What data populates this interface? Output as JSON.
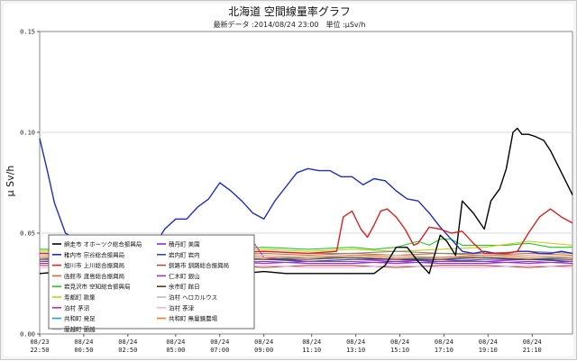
{
  "chart_data": {
    "type": "line",
    "title": "北海道 空間線量率グラフ",
    "subtitle": "最新データ :2014/08/24 23:00　単位 :μSv/h",
    "ylabel": "μ Sv/h",
    "xlabel": "",
    "ylim": [
      0,
      0.15
    ],
    "xlim": [
      22.83,
      47
    ],
    "y_ticks": [
      0.0,
      0.05,
      0.1,
      0.15
    ],
    "y_tick_labels": [
      "0.00",
      "0.05",
      "0.10",
      "0.15"
    ],
    "grid": "horizontal",
    "x_ticks": [
      {
        "x": 22.83,
        "date": "08/23",
        "time": "22:50"
      },
      {
        "x": 24.83,
        "date": "08/24",
        "time": "00:50"
      },
      {
        "x": 26.83,
        "date": "08/24",
        "time": "02:50"
      },
      {
        "x": 29.0,
        "date": "08/24",
        "time": "05:00"
      },
      {
        "x": 31.0,
        "date": "08/24",
        "time": "07:00"
      },
      {
        "x": 33.0,
        "date": "08/24",
        "time": "09:00"
      },
      {
        "x": 35.17,
        "date": "08/24",
        "time": "11:10"
      },
      {
        "x": 37.17,
        "date": "08/24",
        "time": "13:10"
      },
      {
        "x": 39.17,
        "date": "08/24",
        "time": "15:10"
      },
      {
        "x": 41.17,
        "date": "08/24",
        "time": "17:10"
      },
      {
        "x": 43.17,
        "date": "08/24",
        "time": "19:10"
      },
      {
        "x": 45.17,
        "date": "08/24",
        "time": "21:10"
      }
    ],
    "legend_placement": "lower-left",
    "series": [
      {
        "name": "網走市 オホーツク総合振興局",
        "color": "#000000",
        "x": [
          22.83,
          24,
          25,
          26,
          27,
          28,
          29,
          30,
          31,
          32,
          33,
          34,
          35,
          36,
          37,
          38,
          38.5,
          39,
          39.5,
          40,
          40.5,
          41,
          41.3,
          41.7,
          42,
          42.5,
          43,
          43.3,
          43.7,
          44,
          44.3,
          44.5,
          44.7,
          45,
          45.3,
          45.7,
          46,
          46.5,
          47
        ],
        "values": [
          0.03,
          0.031,
          0.031,
          0.031,
          0.03,
          0.031,
          0.03,
          0.031,
          0.031,
          0.03,
          0.031,
          0.03,
          0.03,
          0.03,
          0.03,
          0.03,
          0.034,
          0.043,
          0.043,
          0.036,
          0.03,
          0.049,
          0.046,
          0.039,
          0.066,
          0.06,
          0.052,
          0.066,
          0.072,
          0.082,
          0.1,
          0.102,
          0.099,
          0.099,
          0.098,
          0.096,
          0.091,
          0.08,
          0.069
        ]
      },
      {
        "name": "稚内市 宗谷総合振興局",
        "color": "#1f2fc0",
        "x": [
          22.83,
          23.2,
          23.5,
          24,
          24.5,
          25,
          25.5,
          26,
          26.5,
          27,
          27.5,
          28,
          28.5,
          29,
          29.5,
          30,
          30.5,
          31,
          31.5,
          32,
          32.5,
          33,
          33.5,
          34,
          34.5,
          35,
          35.5,
          36,
          36.5,
          37,
          37.5,
          38,
          38.5,
          39,
          39.5,
          40,
          40.5,
          41,
          41.5,
          42,
          42.5,
          43,
          43.5,
          44,
          44.5,
          45,
          45.5,
          46,
          46.5,
          47
        ],
        "values": [
          0.097,
          0.08,
          0.065,
          0.05,
          0.047,
          0.044,
          0.045,
          0.046,
          0.044,
          0.049,
          0.048,
          0.043,
          0.052,
          0.057,
          0.057,
          0.063,
          0.067,
          0.075,
          0.071,
          0.066,
          0.06,
          0.057,
          0.066,
          0.073,
          0.08,
          0.082,
          0.081,
          0.081,
          0.078,
          0.078,
          0.074,
          0.077,
          0.076,
          0.071,
          0.067,
          0.066,
          0.06,
          0.053,
          0.047,
          0.041,
          0.04,
          0.041,
          0.04,
          0.04,
          0.041,
          0.041,
          0.04,
          0.04,
          0.041,
          0.04
        ]
      },
      {
        "name": "旭川市 上川総合振興局",
        "color": "#dd2020",
        "x": [
          22.83,
          25,
          27,
          29,
          31,
          33,
          35,
          36.3,
          36.6,
          37,
          37.4,
          37.7,
          38,
          38.3,
          38.6,
          39,
          39.4,
          39.8,
          40,
          40.5,
          41,
          41.5,
          42,
          42.5,
          43,
          43.5,
          44,
          44.5,
          45,
          45.5,
          46,
          46.5,
          47
        ],
        "values": [
          0.04,
          0.04,
          0.04,
          0.04,
          0.04,
          0.041,
          0.04,
          0.041,
          0.058,
          0.061,
          0.052,
          0.048,
          0.054,
          0.061,
          0.062,
          0.058,
          0.052,
          0.044,
          0.045,
          0.053,
          0.052,
          0.05,
          0.051,
          0.045,
          0.04,
          0.04,
          0.04,
          0.041,
          0.05,
          0.058,
          0.062,
          0.058,
          0.055
        ]
      },
      {
        "name": "函館市 渡島総合振興局",
        "color": "#e06a2a",
        "x": [
          22.83,
          25,
          27,
          29,
          31,
          33,
          35,
          37,
          39,
          41,
          43,
          45,
          47
        ],
        "values": [
          0.039,
          0.04,
          0.039,
          0.04,
          0.039,
          0.04,
          0.039,
          0.04,
          0.039,
          0.04,
          0.039,
          0.04,
          0.039
        ]
      },
      {
        "name": "岩見沢市 空知総合振興局",
        "color": "#22cc22",
        "x": [
          22.83,
          25,
          27,
          29,
          31,
          33,
          35,
          37,
          38,
          39,
          40,
          40.5,
          41,
          41.5,
          42,
          43,
          44,
          45,
          46,
          47
        ],
        "values": [
          0.042,
          0.042,
          0.043,
          0.042,
          0.042,
          0.043,
          0.042,
          0.043,
          0.042,
          0.043,
          0.046,
          0.044,
          0.047,
          0.047,
          0.044,
          0.044,
          0.044,
          0.045,
          0.043,
          0.043
        ]
      },
      {
        "name": "寿都町 歌棄",
        "color": "#cccc22",
        "x": [
          22.83,
          25,
          27,
          29,
          31,
          33,
          35,
          37,
          39,
          41,
          43,
          45,
          47
        ],
        "values": [
          0.041,
          0.042,
          0.041,
          0.042,
          0.041,
          0.042,
          0.041,
          0.042,
          0.041,
          0.042,
          0.043,
          0.046,
          0.044
        ]
      },
      {
        "name": "泊村 茅沼",
        "color": "#cc22cc",
        "x": [
          22.83,
          25,
          27,
          29,
          31,
          32,
          32.5,
          33,
          35,
          37,
          39,
          41,
          43,
          45,
          47
        ],
        "values": [
          0.036,
          0.037,
          0.036,
          0.037,
          0.036,
          0.038,
          0.046,
          0.038,
          0.036,
          0.037,
          0.036,
          0.037,
          0.036,
          0.037,
          0.036
        ]
      },
      {
        "name": "共和町 発足",
        "color": "#22a0dd",
        "x": [
          22.83,
          25,
          27,
          29,
          31,
          33,
          35,
          37,
          39,
          41,
          43,
          45,
          47
        ],
        "values": [
          0.038,
          0.038,
          0.037,
          0.038,
          0.038,
          0.037,
          0.038,
          0.038,
          0.037,
          0.038,
          0.038,
          0.037,
          0.038
        ]
      },
      {
        "name": "蘭越町 蘭越",
        "color": "#888888",
        "x": [
          22.83,
          25,
          27,
          29,
          31,
          33,
          35,
          37,
          39,
          41,
          43,
          45,
          47
        ],
        "values": [
          0.04,
          0.04,
          0.041,
          0.04,
          0.04,
          0.041,
          0.04,
          0.04,
          0.041,
          0.04,
          0.04,
          0.041,
          0.04
        ]
      },
      {
        "name": "積丹町 美国",
        "color": "#8a2be2",
        "x": [
          22.83,
          25,
          27,
          29,
          31,
          33,
          35,
          37,
          39,
          41,
          43,
          45,
          47
        ],
        "values": [
          0.035,
          0.035,
          0.036,
          0.035,
          0.035,
          0.036,
          0.035,
          0.035,
          0.036,
          0.035,
          0.035,
          0.036,
          0.035
        ]
      },
      {
        "name": "岩内町 岩内",
        "color": "#2255aa",
        "x": [
          22.83,
          25,
          27,
          29,
          31,
          33,
          35,
          37,
          39,
          41,
          43,
          45,
          47
        ],
        "values": [
          0.037,
          0.037,
          0.037,
          0.036,
          0.037,
          0.037,
          0.036,
          0.037,
          0.037,
          0.036,
          0.037,
          0.037,
          0.036
        ]
      },
      {
        "name": "釧路市 釧路総合振興局",
        "color": "#aa5533",
        "x": [
          22.83,
          25,
          27,
          29,
          31,
          33,
          35,
          37,
          39,
          41,
          43,
          45,
          47
        ],
        "values": [
          0.034,
          0.034,
          0.033,
          0.034,
          0.034,
          0.033,
          0.034,
          0.034,
          0.033,
          0.034,
          0.034,
          0.033,
          0.034
        ]
      },
      {
        "name": "仁木町 銀山",
        "color": "#9933cc",
        "x": [
          22.83,
          25,
          27,
          29,
          31,
          33,
          35,
          37,
          39,
          41,
          43,
          45,
          47
        ],
        "values": [
          0.036,
          0.036,
          0.035,
          0.036,
          0.036,
          0.035,
          0.036,
          0.036,
          0.035,
          0.036,
          0.036,
          0.035,
          0.036
        ]
      },
      {
        "name": "余市町 館日",
        "color": "#663311",
        "x": [
          22.83,
          25,
          27,
          29,
          31,
          33,
          35,
          37,
          39,
          41,
          43,
          45,
          47
        ],
        "values": [
          0.037,
          0.038,
          0.037,
          0.037,
          0.038,
          0.037,
          0.037,
          0.038,
          0.037,
          0.037,
          0.038,
          0.037,
          0.037
        ]
      },
      {
        "name": "泊村 ヘロカルウス",
        "color": "#bbbbbb",
        "x": [
          22.83,
          25,
          27,
          29,
          31,
          33,
          35,
          37,
          39,
          41,
          43,
          45,
          47
        ],
        "values": [
          0.039,
          0.039,
          0.039,
          0.038,
          0.039,
          0.039,
          0.038,
          0.039,
          0.039,
          0.038,
          0.039,
          0.039,
          0.038
        ]
      },
      {
        "name": "泊村 茶津",
        "color": "#ffaaee",
        "x": [
          22.83,
          25,
          27,
          29,
          31,
          33,
          35,
          37,
          39,
          41,
          43,
          45,
          47
        ],
        "values": [
          0.033,
          0.033,
          0.034,
          0.033,
          0.033,
          0.034,
          0.033,
          0.033,
          0.034,
          0.033,
          0.033,
          0.034,
          0.033
        ]
      },
      {
        "name": "共和町 無量鏡農場",
        "color": "#ff7733",
        "x": [
          22.83,
          25,
          27,
          29,
          31,
          33,
          35,
          37,
          39,
          41,
          43,
          45,
          47
        ],
        "values": [
          0.038,
          0.039,
          0.038,
          0.038,
          0.039,
          0.038,
          0.038,
          0.039,
          0.038,
          0.038,
          0.039,
          0.038,
          0.038
        ]
      }
    ]
  }
}
